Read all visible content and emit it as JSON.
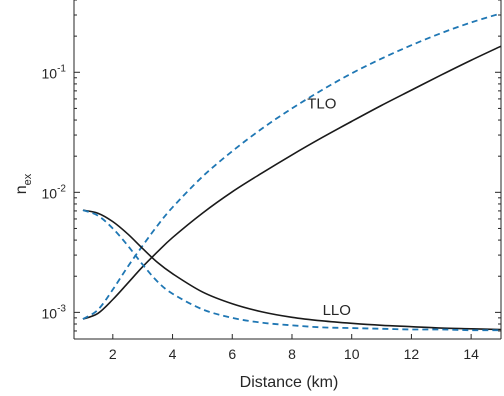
{
  "chart_data": {
    "type": "line",
    "xlabel": "Distance (km)",
    "ylabel_base": "n",
    "ylabel_sub": "ex",
    "xlim": [
      0.7,
      15
    ],
    "ylim": [
      0.0006,
      0.4
    ],
    "yscale": "log",
    "grid": false,
    "x_ticks": [
      2,
      4,
      6,
      8,
      10,
      12,
      14
    ],
    "y_ticks": [
      {
        "value": 0.001,
        "base": "10",
        "exp": "-3"
      },
      {
        "value": 0.01,
        "base": "10",
        "exp": "-2"
      },
      {
        "value": 0.1,
        "base": "10",
        "exp": "-1"
      }
    ],
    "colors": {
      "solid": "#1a1a1a",
      "dashed": "#1f77b4",
      "axis": "#262626"
    },
    "series": [
      {
        "style": "solid",
        "x": [
          1,
          1.5,
          2,
          2.5,
          3,
          3.5,
          4,
          5,
          6,
          7,
          8,
          9,
          10,
          11,
          12,
          13,
          14,
          15
        ],
        "y": [
          0.00088,
          0.00098,
          0.00128,
          0.00175,
          0.0024,
          0.0032,
          0.0042,
          0.0067,
          0.0101,
          0.0145,
          0.0205,
          0.0285,
          0.039,
          0.053,
          0.071,
          0.095,
          0.126,
          0.165
        ]
      },
      {
        "style": "dashed",
        "x": [
          1,
          1.5,
          2,
          2.5,
          3,
          3.5,
          4,
          5,
          6,
          7,
          8,
          9,
          10,
          11,
          12,
          13,
          14,
          15
        ],
        "y": [
          0.00088,
          0.00105,
          0.00155,
          0.0024,
          0.0036,
          0.0053,
          0.0075,
          0.0135,
          0.022,
          0.034,
          0.05,
          0.071,
          0.098,
          0.13,
          0.168,
          0.212,
          0.26,
          0.31
        ]
      },
      {
        "style": "solid",
        "x": [
          1,
          1.5,
          2,
          2.5,
          3,
          3.5,
          4,
          5,
          6,
          7,
          8,
          9,
          10,
          11,
          12,
          13,
          14,
          15
        ],
        "y": [
          0.0071,
          0.0067,
          0.0057,
          0.0045,
          0.0034,
          0.0026,
          0.0021,
          0.00148,
          0.00118,
          0.00101,
          0.00091,
          0.00085,
          0.00081,
          0.00078,
          0.00076,
          0.00074,
          0.00073,
          0.00072
        ]
      },
      {
        "style": "dashed",
        "x": [
          1,
          1.5,
          2,
          2.5,
          3,
          3.5,
          4,
          5,
          6,
          7,
          8,
          9,
          10,
          11,
          12,
          13,
          14,
          15
        ],
        "y": [
          0.0071,
          0.0064,
          0.005,
          0.0036,
          0.0025,
          0.0018,
          0.00143,
          0.00106,
          0.0009,
          0.00082,
          0.00078,
          0.00075,
          0.00074,
          0.00073,
          0.00072,
          0.00072,
          0.00071,
          0.00071
        ]
      }
    ],
    "annotations": [
      {
        "text": "TLO",
        "x": 9.0,
        "y": 0.05
      },
      {
        "text": "LLO",
        "x": 9.5,
        "y": 0.00095
      }
    ]
  }
}
